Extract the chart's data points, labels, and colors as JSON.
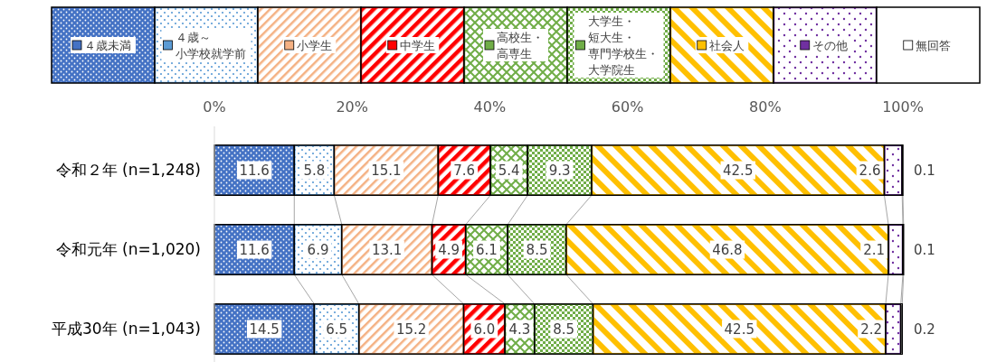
{
  "chart_data": {
    "type": "bar",
    "orientation": "horizontal",
    "stacked": true,
    "legend": "top",
    "grid": false,
    "categories": [
      "令和２年 (n=1,248)",
      "令和元年 (n=1,020)",
      "平成30年 (n=1,043)"
    ],
    "xlim": [
      0,
      100
    ],
    "xticks": [
      {
        "value": 0,
        "label": "0%"
      },
      {
        "value": 20,
        "label": "20%"
      },
      {
        "value": 40,
        "label": "40%"
      },
      {
        "value": 60,
        "label": "60%"
      },
      {
        "value": 80,
        "label": "80%"
      },
      {
        "value": 100,
        "label": "100%"
      }
    ],
    "series": [
      {
        "name": "４歳未満",
        "color": "#4472c4",
        "values": [
          11.6,
          11.6,
          14.5
        ],
        "value_labels": [
          "11.6",
          "11.6",
          "14.5"
        ]
      },
      {
        "name": "４歳～小学校就学前",
        "color": "#5b9bd5",
        "values": [
          5.8,
          6.9,
          6.5
        ],
        "value_labels": [
          "5.8",
          "6.9",
          "6.5"
        ]
      },
      {
        "name": "小学生",
        "color": "#f4b183",
        "values": [
          15.1,
          13.1,
          15.2
        ],
        "value_labels": [
          "15.1",
          "13.1",
          "15.2"
        ]
      },
      {
        "name": "中学生",
        "color": "#ff0000",
        "values": [
          7.6,
          4.9,
          6.0
        ],
        "value_labels": [
          "7.6",
          "4.9",
          "6.0"
        ]
      },
      {
        "name": "高校生・高専生",
        "color": "#70ad47",
        "values": [
          5.4,
          6.1,
          4.3
        ],
        "value_labels": [
          "5.4",
          "6.1",
          "4.3"
        ]
      },
      {
        "name": "大学生・短大生・専門学校生・大学院生",
        "color": "#70ad47",
        "values": [
          9.3,
          8.5,
          8.5
        ],
        "value_labels": [
          "9.3",
          "8.5",
          "8.5"
        ]
      },
      {
        "name": "社会人",
        "color": "#ffc000",
        "values": [
          42.5,
          46.8,
          42.5
        ],
        "value_labels": [
          "42.5",
          "46.8",
          "42.5"
        ]
      },
      {
        "name": "その他",
        "color": "#7030a0",
        "values": [
          2.6,
          2.1,
          2.2
        ],
        "value_labels": [
          "2.6",
          "2.1",
          "2.2"
        ]
      },
      {
        "name": "無回答",
        "color": "#ffffff",
        "values": [
          0.1,
          0.1,
          0.2
        ],
        "value_labels": [
          "0.1",
          "0.1",
          "0.2"
        ]
      }
    ]
  }
}
